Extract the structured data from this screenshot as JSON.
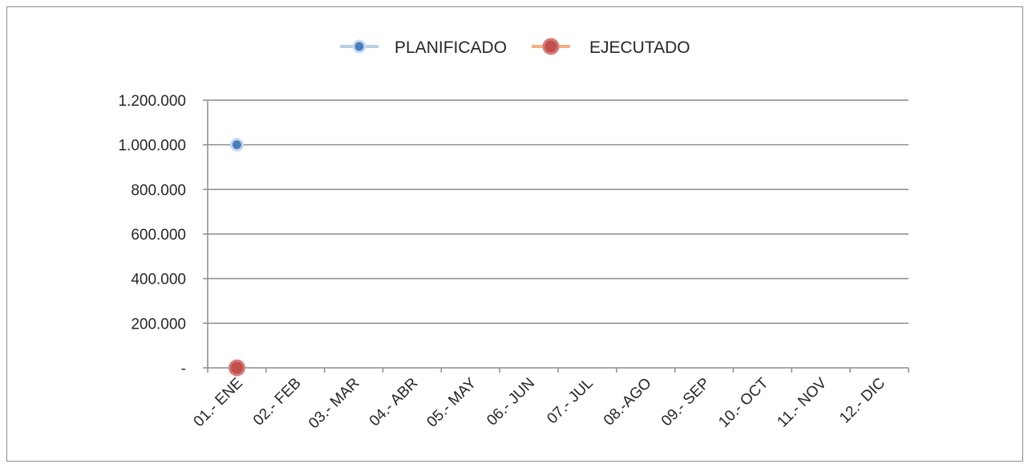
{
  "chart_data": {
    "type": "line",
    "categories": [
      "01.- ENE",
      "02.- FEB",
      "03.- MAR",
      "04.- ABR",
      "05.- MAY",
      "06.- JUN",
      "07.- JUL",
      "08.-AGO",
      "09.- SEP",
      "10.- OCT",
      "11.- NOV",
      "12.- DIC"
    ],
    "series": [
      {
        "name": "PLANIFICADO",
        "values": [
          1000000,
          null,
          null,
          null,
          null,
          null,
          null,
          null,
          null,
          null,
          null,
          null
        ],
        "color": "#4a7ebb",
        "line_color": "#b9cde5"
      },
      {
        "name": "EJECUTADO",
        "values": [
          0,
          null,
          null,
          null,
          null,
          null,
          null,
          null,
          null,
          null,
          null,
          null
        ],
        "color": "#c0504d",
        "line_color": "#f4b183"
      }
    ],
    "ylim": [
      0,
      1200000
    ],
    "yticks": [
      0,
      200000,
      400000,
      600000,
      800000,
      1000000,
      1200000
    ],
    "ytick_labels": [
      "-",
      "200.000",
      "400.000",
      "600.000",
      "800.000",
      "1.000.000",
      "1.200.000"
    ],
    "grid": true,
    "legend_position": "top"
  }
}
